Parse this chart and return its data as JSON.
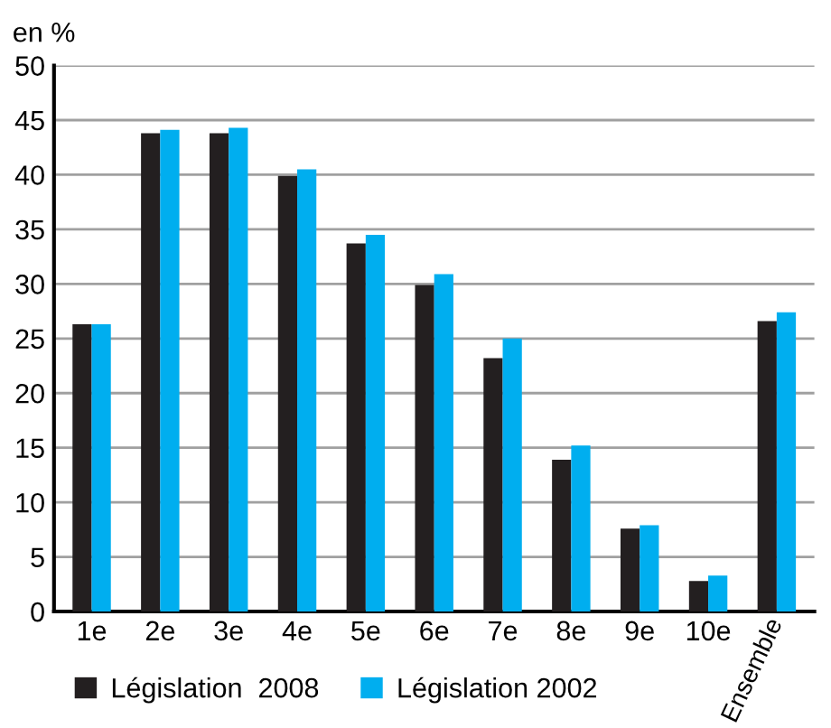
{
  "chart_data": {
    "type": "bar",
    "ylabel": "en %",
    "categories": [
      "1e",
      "2e",
      "3e",
      "4e",
      "5e",
      "6e",
      "7e",
      "8e",
      "9e",
      "10e",
      "Ensemble"
    ],
    "series": [
      {
        "name": "Législation  2008",
        "color": "#231f20",
        "values": [
          26.3,
          43.8,
          43.8,
          39.9,
          33.7,
          29.9,
          23.2,
          13.9,
          7.6,
          2.8,
          26.6
        ]
      },
      {
        "name": "Législation 2002",
        "color": "#00aeef",
        "values": [
          26.3,
          44.1,
          44.3,
          40.5,
          34.5,
          30.9,
          25.0,
          15.2,
          7.9,
          3.3,
          27.4
        ]
      }
    ],
    "ylim": [
      0,
      50
    ],
    "yticks": [
      0,
      5,
      10,
      15,
      20,
      25,
      30,
      35,
      40,
      45,
      50
    ],
    "grid": "y",
    "legend": "bottom left"
  }
}
